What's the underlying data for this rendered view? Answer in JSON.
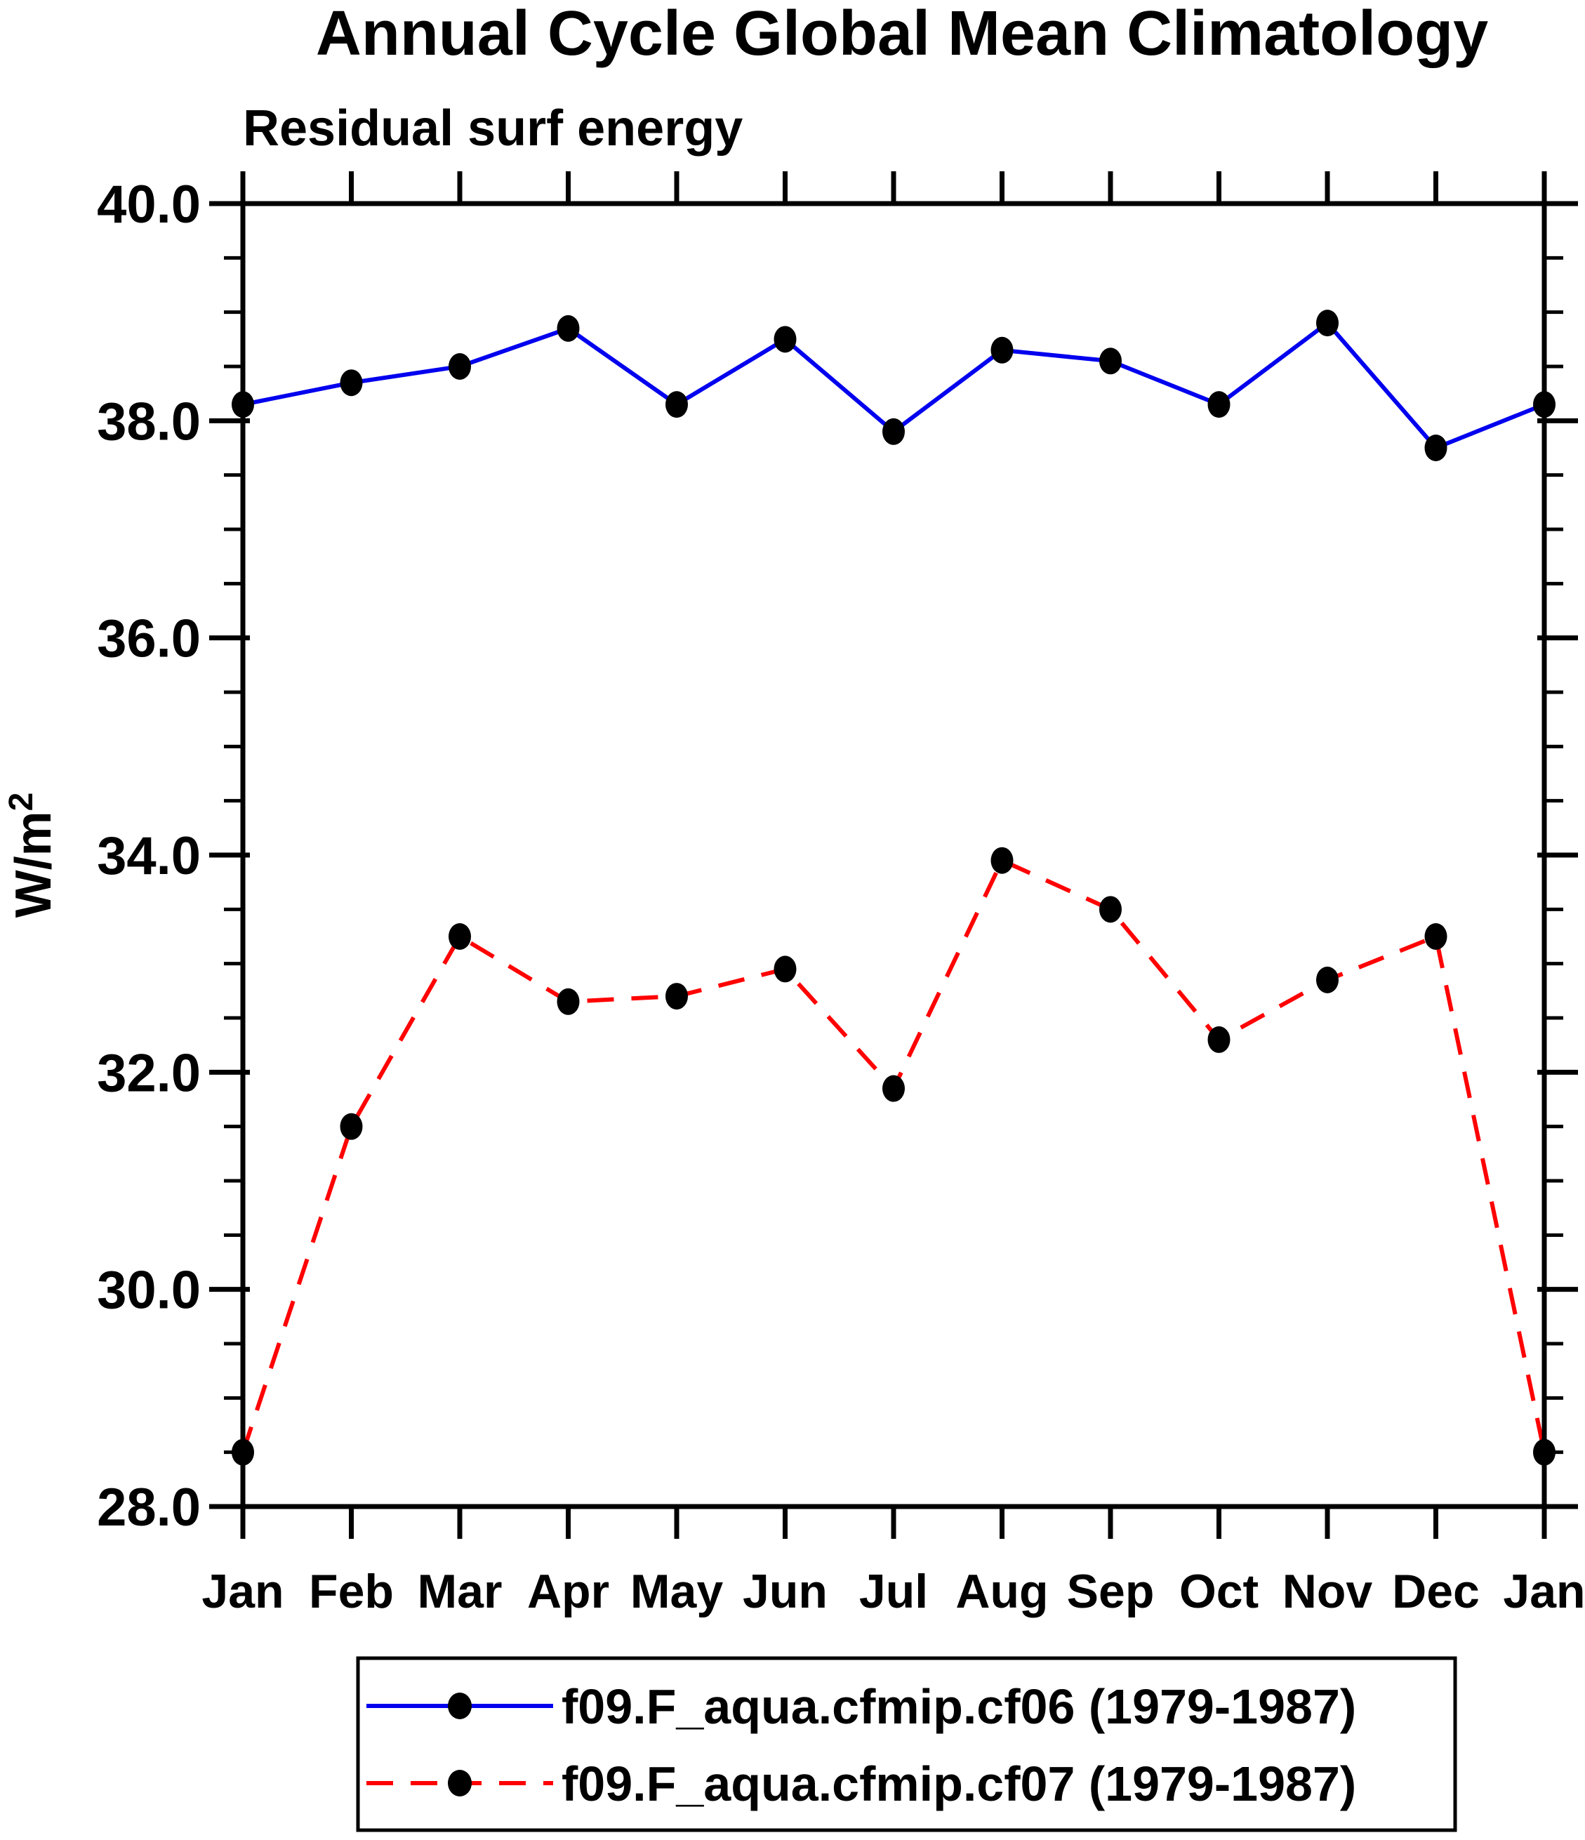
{
  "page_background": "#FFFFFF",
  "chart_data": {
    "type": "line",
    "title": "Annual Cycle Global Mean Climatology",
    "subtitle": "Residual surf energy",
    "ylabel": {
      "base": "W/m",
      "superscript": "2"
    },
    "categories": [
      "Jan",
      "Feb",
      "Mar",
      "Apr",
      "May",
      "Jun",
      "Jul",
      "Aug",
      "Sep",
      "Oct",
      "Nov",
      "Dec",
      "Jan"
    ],
    "y_axis": {
      "min": 28.0,
      "max": 40.0,
      "major_step": 2.0,
      "minor_step": 0.5,
      "major_tick_labels": [
        "28.0",
        "30.0",
        "32.0",
        "34.0",
        "36.0",
        "38.0",
        "40.0"
      ]
    },
    "grid": false,
    "legend_position": "bottom",
    "axis_color": "#000000",
    "marker_color": "#000000",
    "series": [
      {
        "name": "f09.F_aqua.cfmip.cf06 (1979-1987)",
        "color": "#0000EE",
        "line_style": "solid",
        "marker": "filled-circle",
        "values": [
          38.15,
          38.35,
          38.5,
          38.85,
          38.15,
          38.75,
          37.9,
          38.65,
          38.55,
          38.15,
          38.9,
          37.75,
          38.15
        ]
      },
      {
        "name": "f09.F_aqua.cfmip.cf07 (1979-1987)",
        "color": "#FF0000",
        "line_style": "dashed",
        "marker": "filled-circle",
        "values": [
          28.5,
          31.5,
          33.25,
          32.65,
          32.7,
          32.95,
          31.85,
          33.95,
          33.5,
          32.3,
          32.85,
          33.25,
          28.5
        ]
      }
    ]
  }
}
